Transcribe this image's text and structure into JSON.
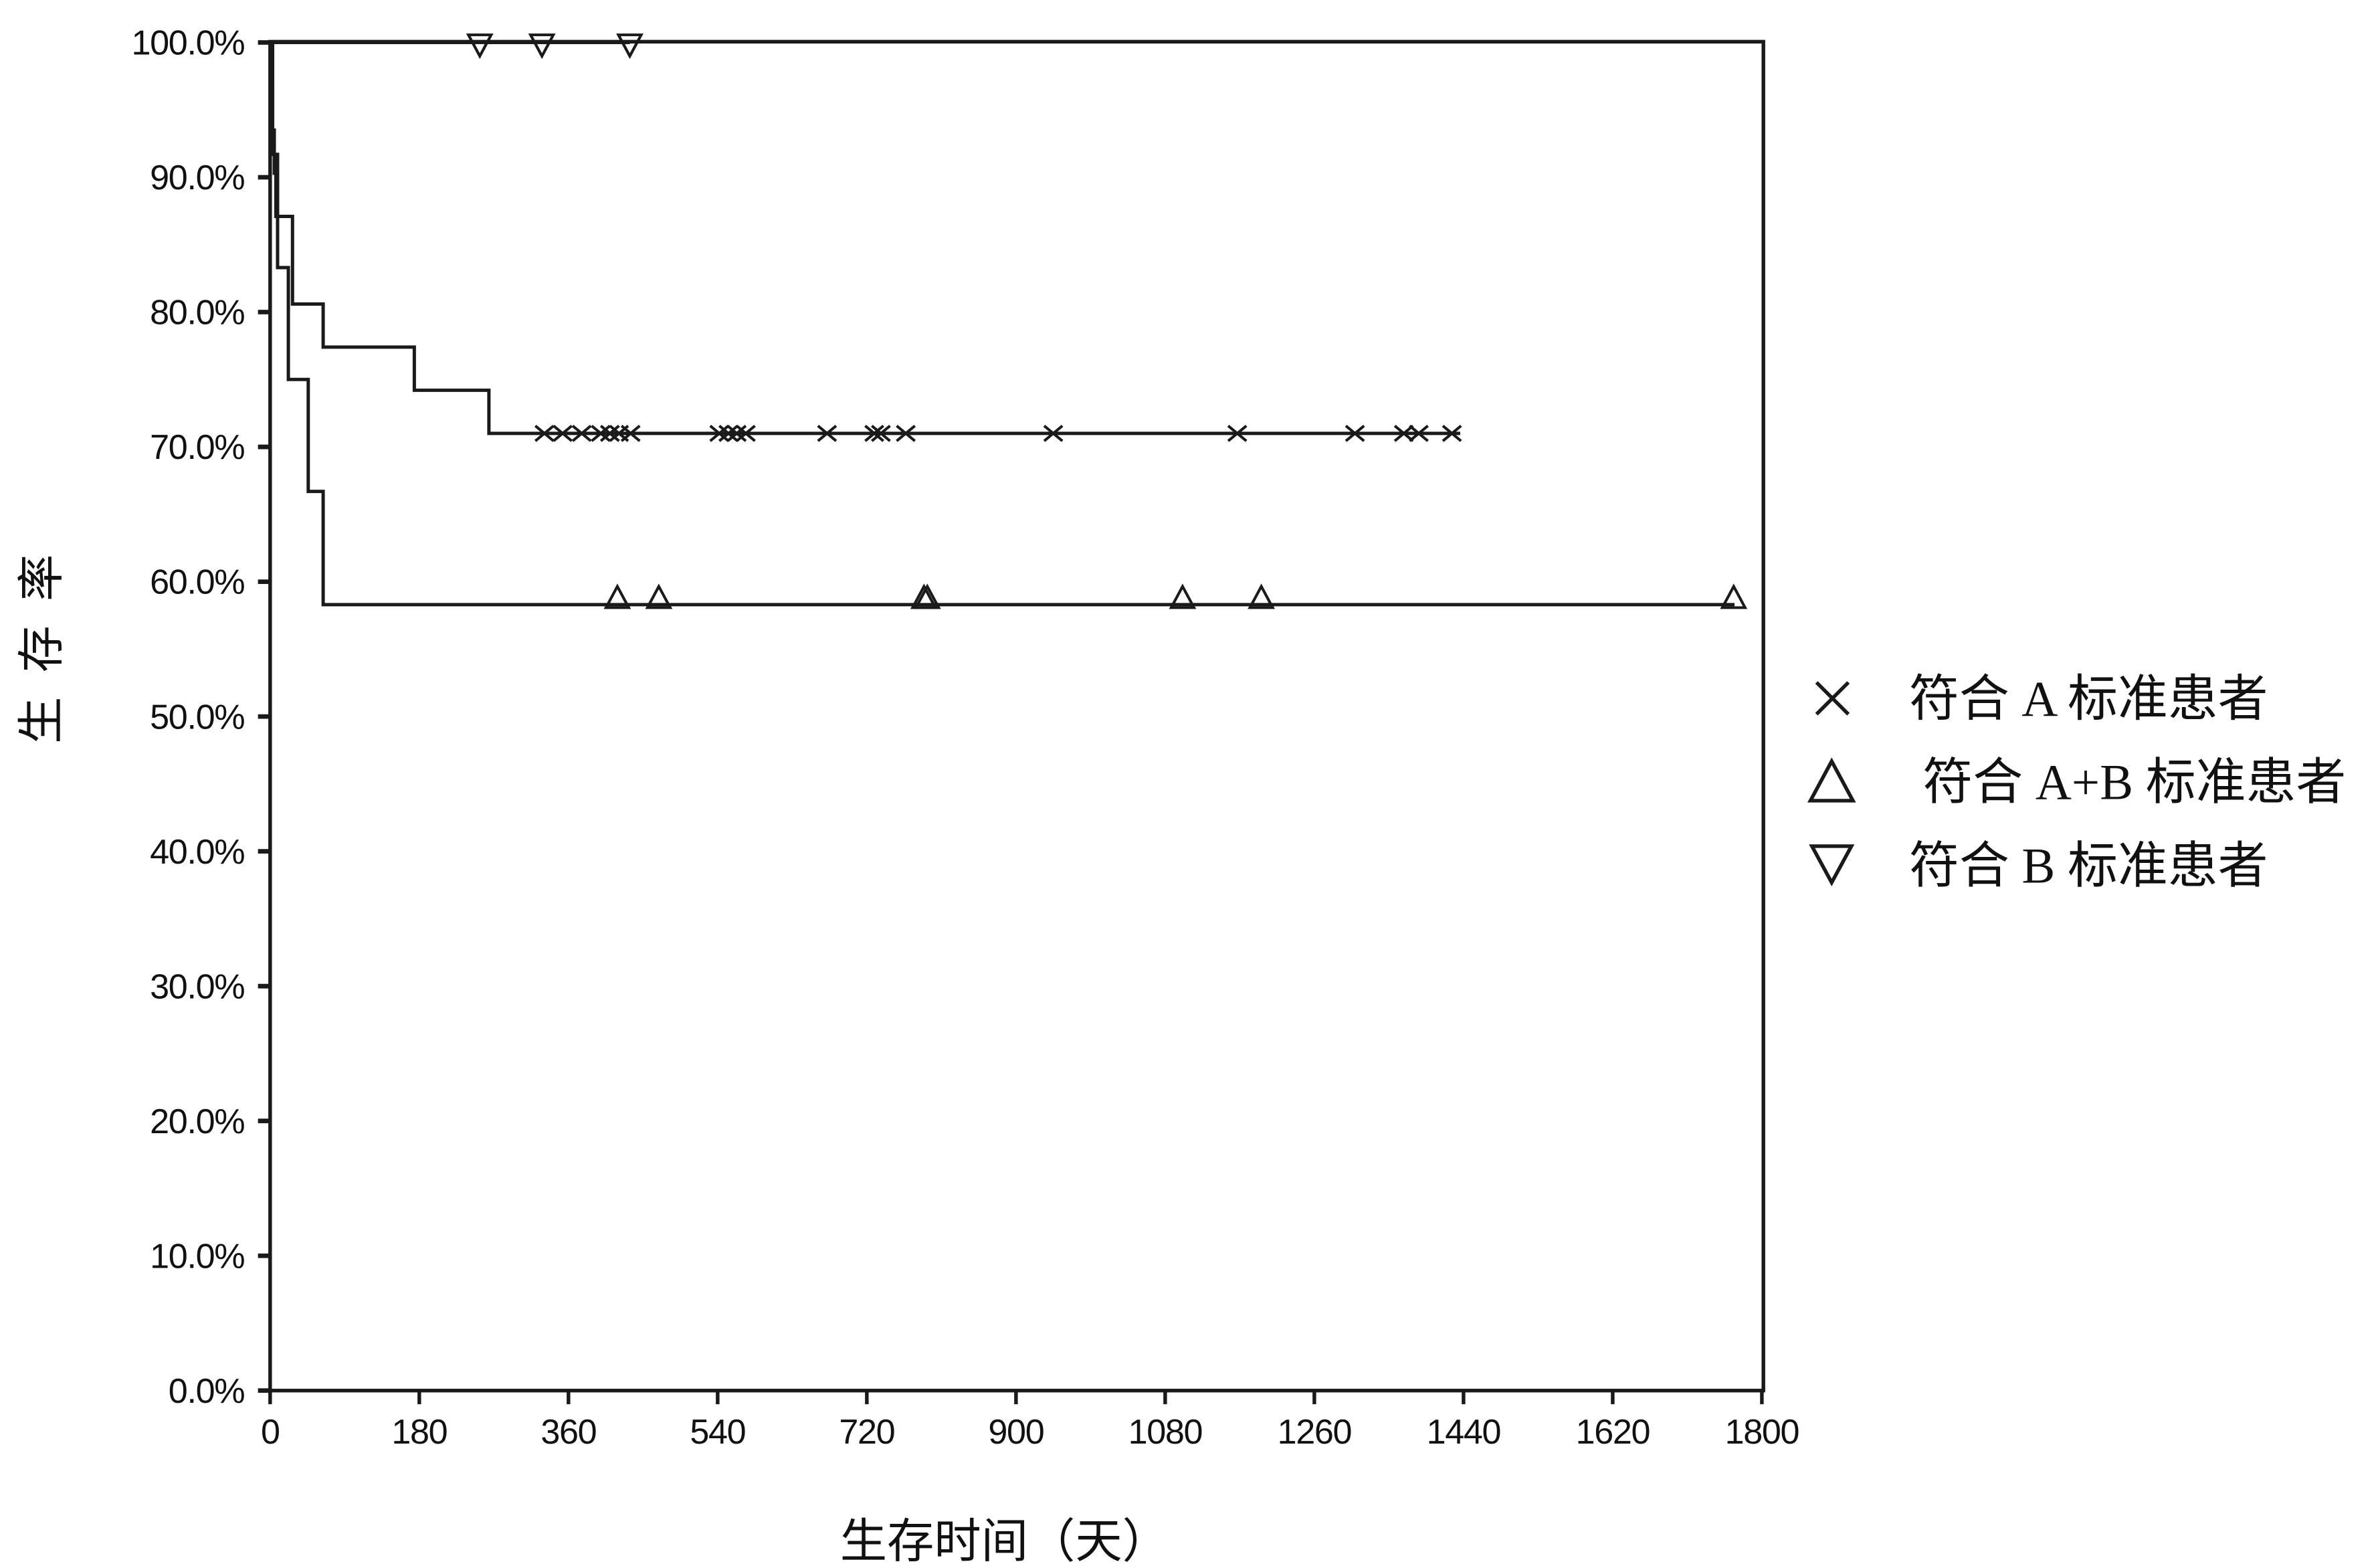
{
  "chart_data": {
    "type": "line",
    "step": true,
    "title": "",
    "xlabel": "生存时间（天）",
    "ylabel": "生存率",
    "xlim": [
      0,
      1800
    ],
    "ylim": [
      0,
      100
    ],
    "x_ticks": [
      0,
      180,
      360,
      540,
      720,
      900,
      1080,
      1260,
      1440,
      1620,
      1800
    ],
    "x_tick_labels": [
      "0",
      "180",
      "360",
      "540",
      "720",
      "900",
      "1080",
      "1260",
      "1440",
      "1620",
      "1800"
    ],
    "y_ticks": [
      0,
      10,
      20,
      30,
      40,
      50,
      60,
      70,
      80,
      90,
      100
    ],
    "y_tick_labels": [
      "0.0%",
      "10.0%",
      "20.0%",
      "30.0%",
      "40.0%",
      "50.0%",
      "60.0%",
      "70.0%",
      "80.0%",
      "90.0%",
      "100.0%"
    ],
    "grid": false,
    "legend_position": "right",
    "colors": {
      "line": "#1a1a1a",
      "text": "#111111",
      "background": "#ffffff"
    },
    "series": [
      {
        "name": "符合 A 标准患者",
        "marker": "x",
        "steps": [
          [
            0,
            100
          ],
          [
            1,
            96.8
          ],
          [
            3,
            93.5
          ],
          [
            5,
            90.3
          ],
          [
            7,
            87.1
          ],
          [
            27,
            80.6
          ],
          [
            64,
            77.4
          ],
          [
            174,
            74.2
          ],
          [
            264,
            71.0
          ]
        ],
        "last_day": 1436,
        "censored_days": [
          331,
          353,
          376,
          399,
          410,
          421,
          435,
          542,
          553,
          563,
          574,
          672,
          729,
          737,
          767,
          945,
          1167,
          1309,
          1368,
          1386,
          1426
        ]
      },
      {
        "name": "符合 A+B 标准患者",
        "marker": "triangle-up",
        "steps": [
          [
            0,
            100
          ],
          [
            3,
            91.7
          ],
          [
            9,
            83.3
          ],
          [
            22,
            75.0
          ],
          [
            46,
            66.7
          ],
          [
            64,
            58.3
          ]
        ],
        "last_day": 1767,
        "censored_days": [
          419,
          469,
          789,
          793,
          1101,
          1196,
          1766
        ]
      },
      {
        "name": "符合 B 标准患者",
        "marker": "triangle-down",
        "steps": [
          [
            0,
            100
          ]
        ],
        "last_day": 434,
        "censored_days": [
          253,
          328,
          434
        ]
      }
    ]
  }
}
